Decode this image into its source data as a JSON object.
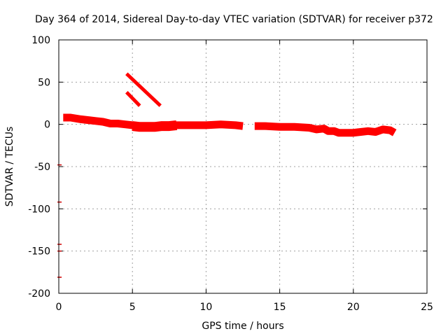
{
  "chart_data": {
    "type": "line",
    "title": "Day 364 of 2014, Sidereal Day-to-day VTEC variation (SDTVAR) for receiver p372",
    "xlabel": "GPS time / hours",
    "ylabel": "SDTVAR / TECUs",
    "xlim": [
      0,
      25
    ],
    "ylim": [
      -200,
      100
    ],
    "xticks": [
      0,
      5,
      10,
      15,
      20,
      25
    ],
    "yticks": [
      -200,
      -150,
      -100,
      -50,
      0,
      50,
      100
    ],
    "xtick_labels": [
      "0",
      "5",
      "10",
      "15",
      "20",
      "25"
    ],
    "ytick_labels": [
      "-200",
      "-150",
      "-100",
      "-50",
      "0",
      "50",
      "100"
    ],
    "grid": true,
    "colors": {
      "series": "#ff0000",
      "outlier": "#cc0000",
      "grid": "#a0a0a0"
    },
    "series": [
      {
        "name": "main-trace",
        "thickness": "thick",
        "x": [
          0.3,
          0.8,
          1.5,
          2.0,
          2.5,
          3.0,
          3.5,
          4.0,
          4.5,
          5.0,
          5.5,
          6.0,
          7.0,
          8.0,
          9.0,
          10.0,
          11.0,
          12.0,
          12.5
        ],
        "y": [
          8,
          8,
          6,
          5,
          4,
          3,
          1,
          1,
          0,
          -1,
          -2,
          -2,
          -2,
          -1,
          -1,
          -1,
          0,
          -1,
          -2
        ]
      },
      {
        "name": "dip-band",
        "thickness": "extra",
        "x": [
          5.0,
          5.5,
          6.0,
          6.5,
          7.0,
          7.5,
          8.0
        ],
        "y": [
          -2,
          -3,
          -3,
          -3,
          -2,
          -2,
          -1
        ]
      },
      {
        "name": "main-trace-2",
        "thickness": "thick",
        "x": [
          13.3,
          14.0,
          15.0,
          16.0,
          17.0,
          17.5,
          18.0,
          18.3,
          18.7,
          19.0,
          19.5,
          20.0,
          20.5,
          21.0,
          21.5,
          22.0,
          22.5,
          22.8
        ],
        "y": [
          -2,
          -2,
          -3,
          -3,
          -4,
          -6,
          -5,
          -8,
          -8,
          -10,
          -10,
          -10,
          -9,
          -8,
          -9,
          -6,
          -7,
          -10
        ]
      },
      {
        "name": "diagonal-upper",
        "thickness": "thin",
        "x": [
          4.6,
          6.9
        ],
        "y": [
          60,
          22
        ]
      },
      {
        "name": "diagonal-lower",
        "thickness": "thin",
        "x": [
          4.6,
          5.5
        ],
        "y": [
          38,
          22
        ]
      }
    ],
    "outliers": [
      {
        "x": 0.05,
        "y": -48
      },
      {
        "x": 0.05,
        "y": -92
      },
      {
        "x": 0.05,
        "y": -142
      },
      {
        "x": 0.05,
        "y": -150
      },
      {
        "x": 0.05,
        "y": -181
      }
    ]
  }
}
